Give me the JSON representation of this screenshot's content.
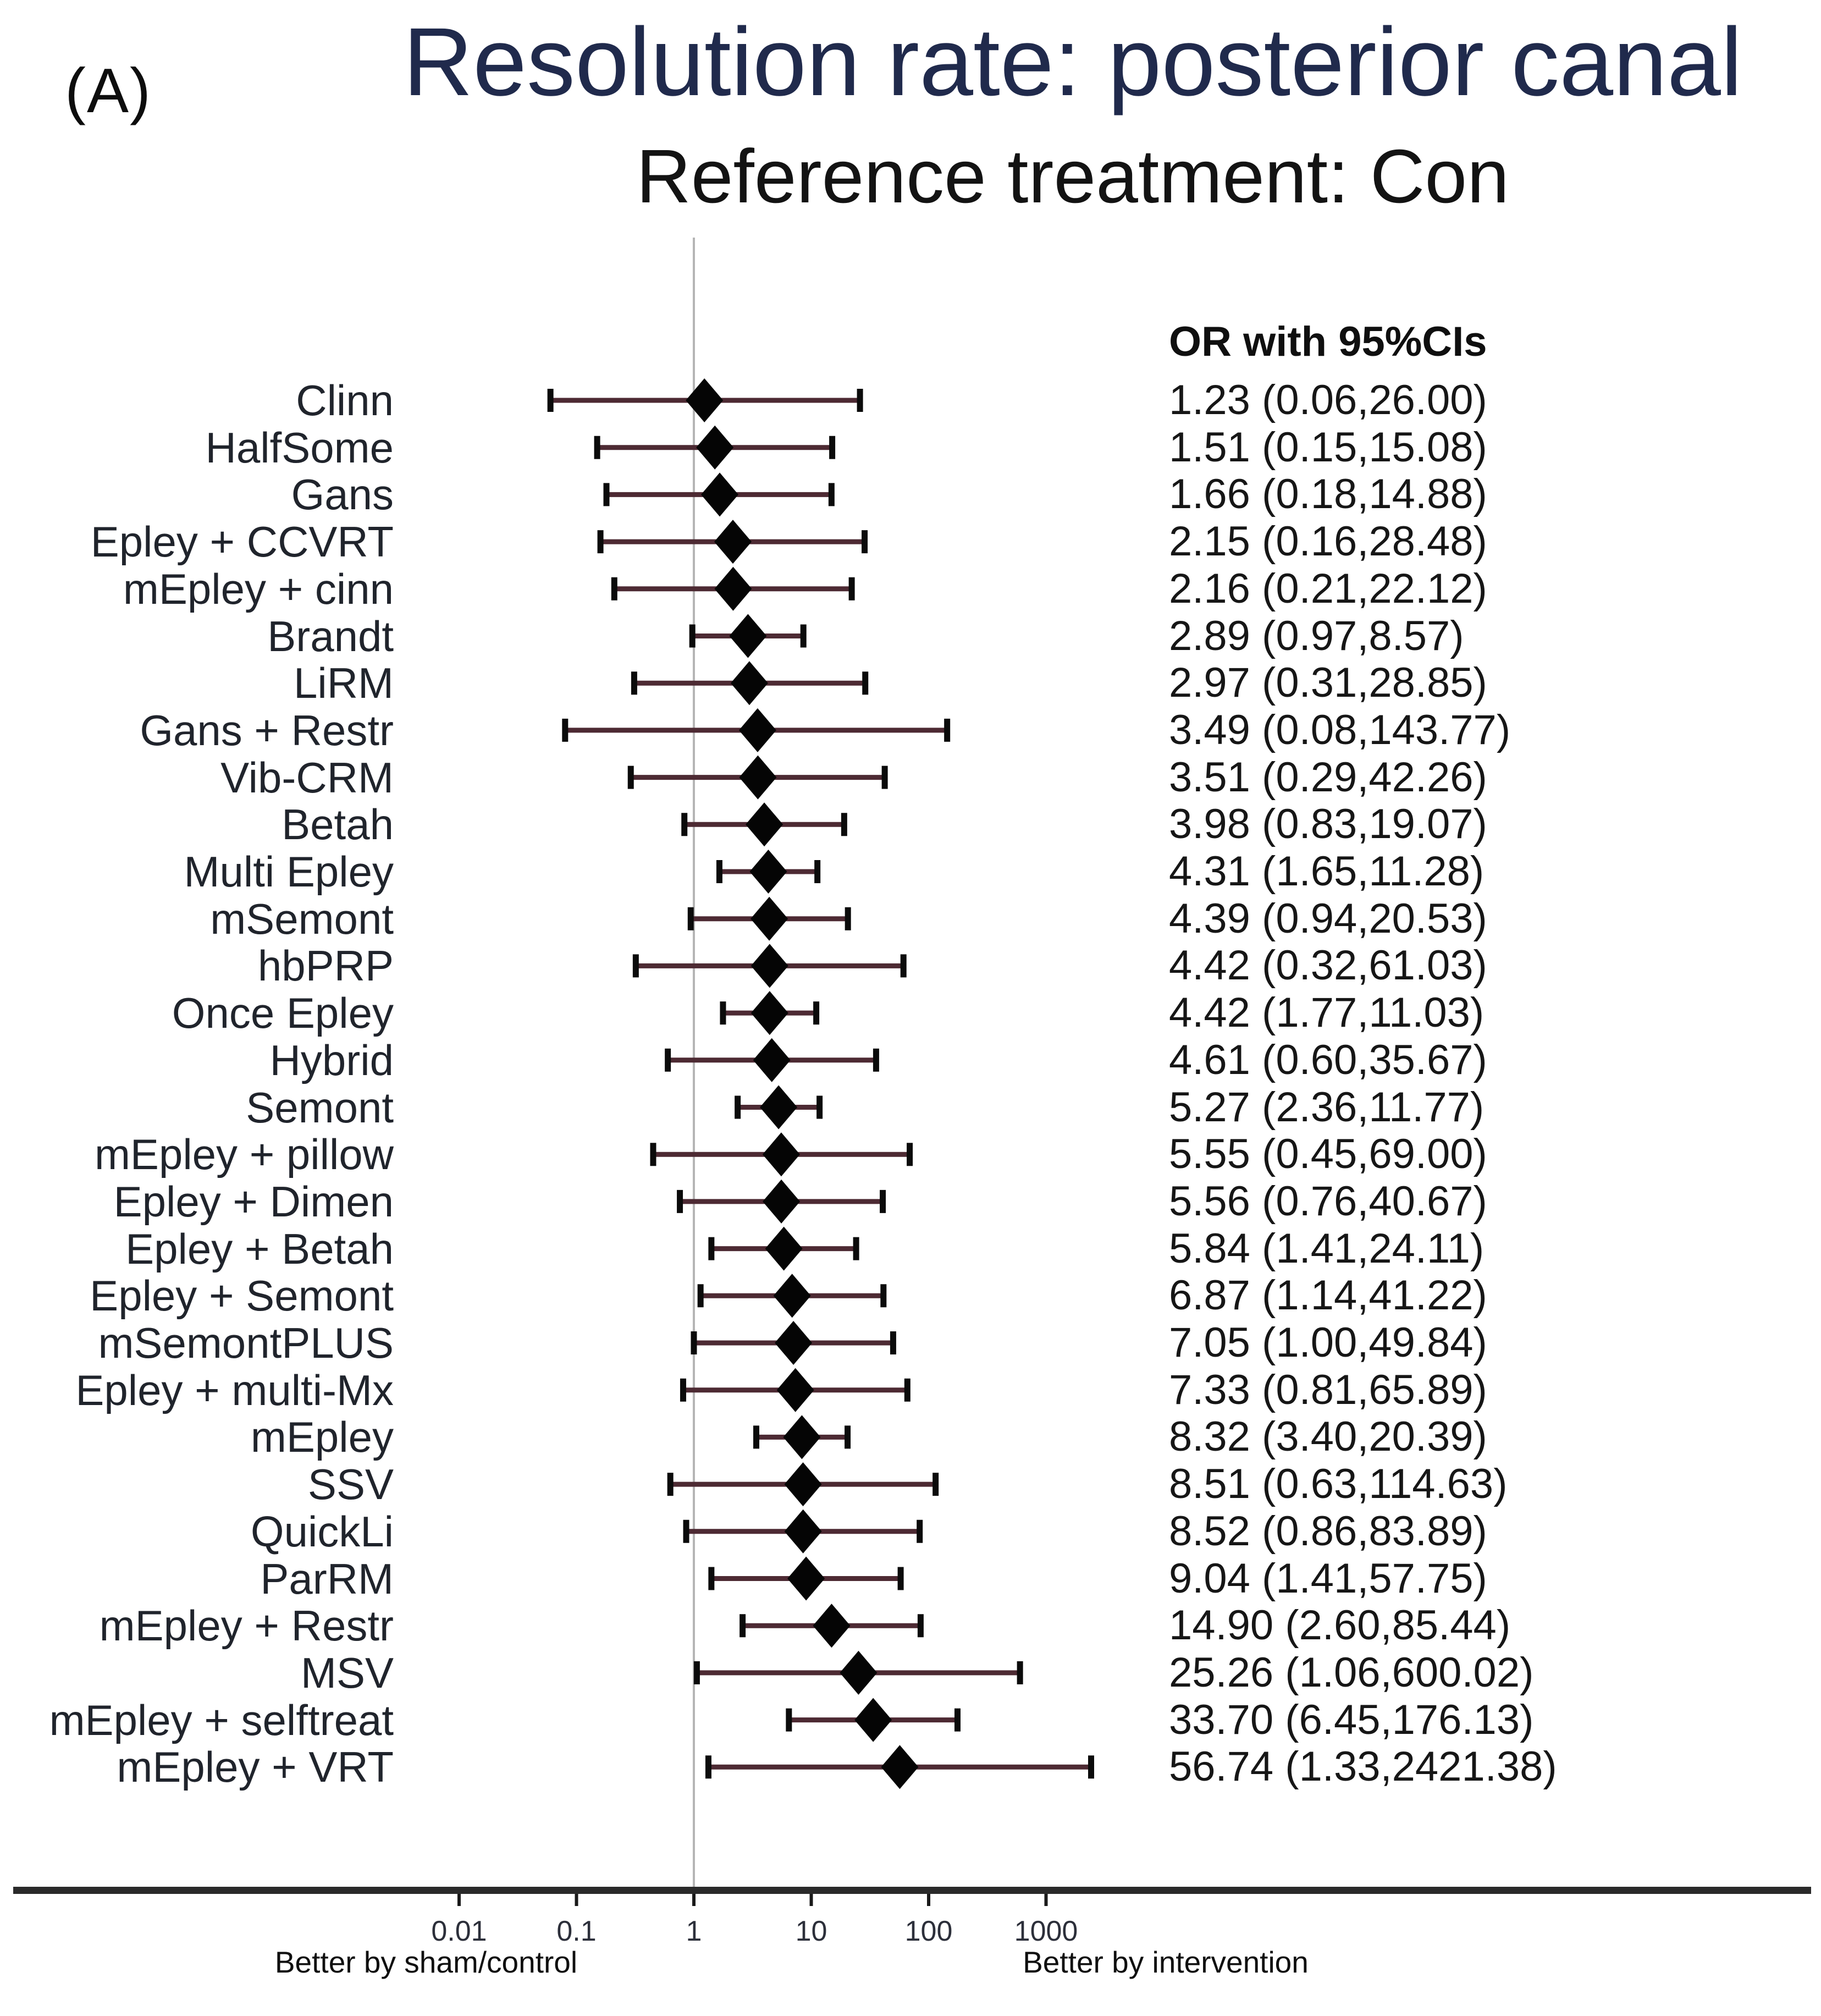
{
  "panel_label": "(A)",
  "title": "Resolution rate: posterior canal",
  "subtitle": "Reference treatment: Con",
  "chart_data": {
    "type": "forest",
    "column_header": "OR with 95%CIs",
    "effect_measure": "OR",
    "rows": [
      {
        "label": "Clinn",
        "or": 1.23,
        "ci_low": 0.06,
        "ci_high": 26.0,
        "text": "1.23 (0.06,26.00)"
      },
      {
        "label": "HalfSome",
        "or": 1.51,
        "ci_low": 0.15,
        "ci_high": 15.08,
        "text": "1.51 (0.15,15.08)"
      },
      {
        "label": "Gans",
        "or": 1.66,
        "ci_low": 0.18,
        "ci_high": 14.88,
        "text": "1.66 (0.18,14.88)"
      },
      {
        "label": "Epley + CCVRT",
        "or": 2.15,
        "ci_low": 0.16,
        "ci_high": 28.48,
        "text": "2.15 (0.16,28.48)"
      },
      {
        "label": "mEpley + cinn",
        "or": 2.16,
        "ci_low": 0.21,
        "ci_high": 22.12,
        "text": "2.16 (0.21,22.12)"
      },
      {
        "label": "Brandt",
        "or": 2.89,
        "ci_low": 0.97,
        "ci_high": 8.57,
        "text": "2.89 (0.97,8.57)"
      },
      {
        "label": "LiRM",
        "or": 2.97,
        "ci_low": 0.31,
        "ci_high": 28.85,
        "text": "2.97 (0.31,28.85)"
      },
      {
        "label": "Gans + Restr",
        "or": 3.49,
        "ci_low": 0.08,
        "ci_high": 143.77,
        "text": "3.49 (0.08,143.77)"
      },
      {
        "label": "Vib-CRM",
        "or": 3.51,
        "ci_low": 0.29,
        "ci_high": 42.26,
        "text": "3.51 (0.29,42.26)"
      },
      {
        "label": "Betah",
        "or": 3.98,
        "ci_low": 0.83,
        "ci_high": 19.07,
        "text": "3.98 (0.83,19.07)"
      },
      {
        "label": "Multi Epley",
        "or": 4.31,
        "ci_low": 1.65,
        "ci_high": 11.28,
        "text": "4.31 (1.65,11.28)"
      },
      {
        "label": "mSemont",
        "or": 4.39,
        "ci_low": 0.94,
        "ci_high": 20.53,
        "text": "4.39 (0.94,20.53)"
      },
      {
        "label": "hbPRP",
        "or": 4.42,
        "ci_low": 0.32,
        "ci_high": 61.03,
        "text": "4.42 (0.32,61.03)"
      },
      {
        "label": "Once Epley",
        "or": 4.42,
        "ci_low": 1.77,
        "ci_high": 11.03,
        "text": "4.42 (1.77,11.03)"
      },
      {
        "label": "Hybrid",
        "or": 4.61,
        "ci_low": 0.6,
        "ci_high": 35.67,
        "text": "4.61 (0.60,35.67)"
      },
      {
        "label": "Semont",
        "or": 5.27,
        "ci_low": 2.36,
        "ci_high": 11.77,
        "text": "5.27 (2.36,11.77)"
      },
      {
        "label": "mEpley + pillow",
        "or": 5.55,
        "ci_low": 0.45,
        "ci_high": 69.0,
        "text": "5.55 (0.45,69.00)"
      },
      {
        "label": "Epley + Dimen",
        "or": 5.56,
        "ci_low": 0.76,
        "ci_high": 40.67,
        "text": "5.56 (0.76,40.67)"
      },
      {
        "label": "Epley + Betah",
        "or": 5.84,
        "ci_low": 1.41,
        "ci_high": 24.11,
        "text": "5.84 (1.41,24.11)"
      },
      {
        "label": "Epley + Semont",
        "or": 6.87,
        "ci_low": 1.14,
        "ci_high": 41.22,
        "text": "6.87 (1.14,41.22)"
      },
      {
        "label": "mSemontPLUS",
        "or": 7.05,
        "ci_low": 1.0,
        "ci_high": 49.84,
        "text": "7.05 (1.00,49.84)"
      },
      {
        "label": "Epley + multi-Mx",
        "or": 7.33,
        "ci_low": 0.81,
        "ci_high": 65.89,
        "text": "7.33 (0.81,65.89)"
      },
      {
        "label": "mEpley",
        "or": 8.32,
        "ci_low": 3.4,
        "ci_high": 20.39,
        "text": "8.32 (3.40,20.39)"
      },
      {
        "label": "SSV",
        "or": 8.51,
        "ci_low": 0.63,
        "ci_high": 114.63,
        "text": "8.51 (0.63,114.63)"
      },
      {
        "label": "QuickLi",
        "or": 8.52,
        "ci_low": 0.86,
        "ci_high": 83.89,
        "text": "8.52 (0.86,83.89)"
      },
      {
        "label": "ParRM",
        "or": 9.04,
        "ci_low": 1.41,
        "ci_high": 57.75,
        "text": "9.04 (1.41,57.75)"
      },
      {
        "label": "mEpley + Restr",
        "or": 14.9,
        "ci_low": 2.6,
        "ci_high": 85.44,
        "text": "14.90 (2.60,85.44)"
      },
      {
        "label": "MSV",
        "or": 25.26,
        "ci_low": 1.06,
        "ci_high": 600.02,
        "text": "25.26 (1.06,600.02)"
      },
      {
        "label": "mEpley + selftreat",
        "or": 33.7,
        "ci_low": 6.45,
        "ci_high": 176.13,
        "text": "33.70 (6.45,176.13)"
      },
      {
        "label": "mEpley + VRT",
        "or": 56.74,
        "ci_low": 1.33,
        "ci_high": 2421.38,
        "text": "56.74 (1.33,2421.38)"
      }
    ],
    "x_axis": {
      "scale": "log10",
      "range": [
        0.005,
        5000
      ],
      "ticks": [
        0.01,
        0.1,
        1,
        10,
        100,
        1000
      ],
      "tick_labels": [
        "0.01",
        "0.1",
        "1",
        "10",
        "100",
        "1000"
      ],
      "reference_value": 1,
      "left_label": "Better by sham/control",
      "right_label": "Better by intervention"
    },
    "legend": "none",
    "grid": "off",
    "colors": {
      "title": "#202a4c",
      "label_text": "#20242c",
      "body_text": "#161616",
      "diamond": "#050505",
      "ci_line": "#4d2a33",
      "ci_cap": "#0b0b0b",
      "reference_line": "#b5b5b5",
      "axis_line": "#2a2a2a",
      "tick_mark": "#1a1a1a",
      "background": "#ffffff"
    }
  }
}
